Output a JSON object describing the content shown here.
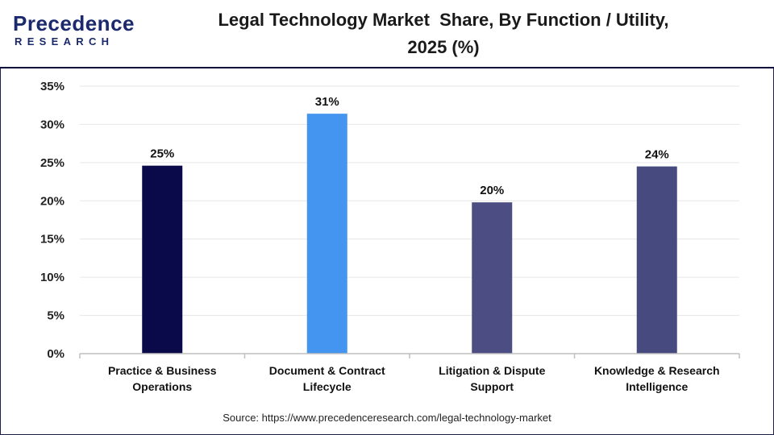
{
  "logo": {
    "name": "Precedence",
    "sub": "RESEARCH"
  },
  "title": "Legal Technology Market  Share, By Function / Utility,\n2025 (%)",
  "source": "Source: https://www.precedenceresearch.com/legal-technology-market",
  "chart_data": {
    "type": "bar",
    "title": "Legal Technology Market  Share, By Function / Utility, 2025 (%)",
    "categories": [
      [
        "Practice & Business",
        "Operations"
      ],
      [
        "Document & Contract",
        "Lifecycle"
      ],
      [
        "Litigation & Dispute",
        "Support"
      ],
      [
        "Knowledge & Research",
        "Intelligence"
      ]
    ],
    "values": [
      24.6,
      31.4,
      19.8,
      24.5
    ],
    "data_labels": [
      "25%",
      "31%",
      "20%",
      "24%"
    ],
    "colors": [
      "#0a0a4a",
      "#4495ef",
      "#4c4d82",
      "#464a7e"
    ],
    "yticks": [
      "0%",
      "5%",
      "10%",
      "15%",
      "20%",
      "25%",
      "30%",
      "35%"
    ],
    "ylim": [
      0,
      35
    ],
    "grid": true,
    "legend": "none"
  }
}
